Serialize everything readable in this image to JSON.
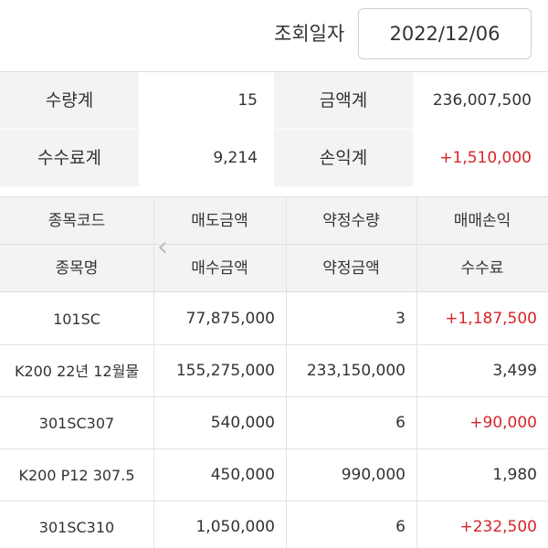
{
  "query": {
    "date_label": "조회일자",
    "date_value": "2022/12/06"
  },
  "summary": {
    "qty_label": "수량계",
    "qty_value": "15",
    "amount_label": "금액계",
    "amount_value": "236,007,500",
    "fee_label": "수수료계",
    "fee_value": "9,214",
    "pnl_label": "손익계",
    "pnl_value": "+1,510,000"
  },
  "table": {
    "header_row1": [
      "종목코드",
      "매도금액",
      "약정수량",
      "매매손익"
    ],
    "header_row2": [
      "종목명",
      "매수금액",
      "약정금액",
      "수수료"
    ],
    "rows": [
      {
        "name": "101SC",
        "amount": "77,875,000",
        "qty": "3",
        "pnl": "+1,187,500",
        "pnl_red": true
      },
      {
        "name": "K200 22년 12월물",
        "amount": "155,275,000",
        "qty": "233,150,000",
        "pnl": "3,499",
        "pnl_red": false
      },
      {
        "name": "301SC307",
        "amount": "540,000",
        "qty": "6",
        "pnl": "+90,000",
        "pnl_red": true
      },
      {
        "name": "K200 P12 307.5",
        "amount": "450,000",
        "qty": "990,000",
        "pnl": "1,980",
        "pnl_red": false
      },
      {
        "name": "301SC310",
        "amount": "1,050,000",
        "qty": "6",
        "pnl": "+232,500",
        "pnl_red": true
      }
    ]
  },
  "icons": {
    "scroll_left": "chevron-left-icon"
  },
  "colors": {
    "profit_red": "#d6242a",
    "header_bg": "#f3f3f3"
  }
}
